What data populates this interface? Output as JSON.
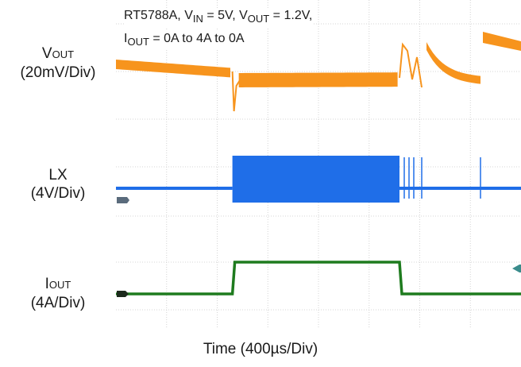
{
  "chart_data": {
    "type": "line",
    "title_line1": {
      "a": "RT5788A, V",
      "b": "IN",
      "c": " = 5V, V",
      "d": "OUT",
      "e": " = 1.2V,"
    },
    "title_line2": {
      "a": "I",
      "b": "OUT",
      "c": " = 0A to 4A to 0A"
    },
    "xlabel": "Time (400µs/Div)",
    "x_divisions": 8,
    "grid": true,
    "channels": [
      {
        "name": "vout",
        "label_main": "V",
        "label_sub": "OUT",
        "scale": "(20mV/Div)",
        "color": "#f7941d"
      },
      {
        "name": "lx",
        "label_main": "LX",
        "label_sub": "",
        "scale": "(4V/Div)",
        "color": "#1f6ee8"
      },
      {
        "name": "iout",
        "label_main": "I",
        "label_sub": "OUT",
        "scale": "(4A/Div)",
        "color": "#1e7b1e"
      }
    ],
    "load_step": {
      "low_A": 0,
      "high_A": 4,
      "rise_div": 2.3,
      "fall_div": 5.6
    }
  }
}
